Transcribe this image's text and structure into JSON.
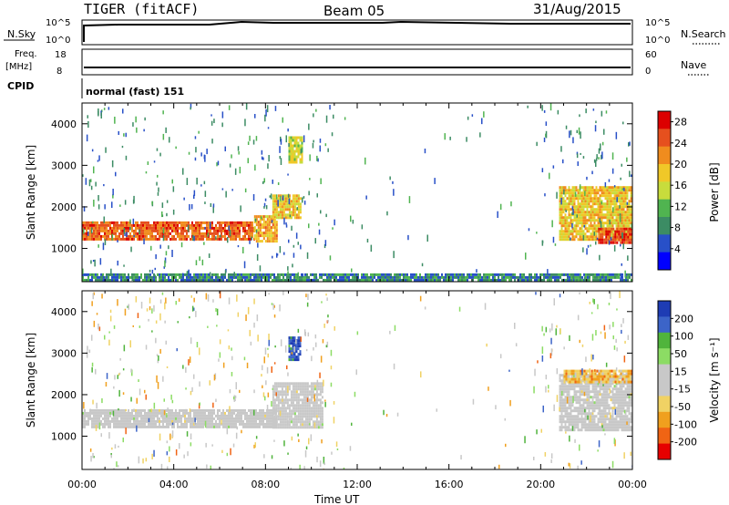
{
  "header": {
    "title": "TIGER (fitACF)",
    "beam": "Beam 05",
    "date": "31/Aug/2015"
  },
  "strips": {
    "nsky": {
      "label": "N.Sky",
      "right_label": "N.Search",
      "left_ticks": [
        "10^5",
        "10^0"
      ],
      "right_ticks": [
        "10^5",
        "10^0"
      ]
    },
    "freq": {
      "label_line1": "Freq.",
      "label_line2": "[MHz]",
      "right_label": "Nave",
      "left_ticks": [
        "18",
        "8"
      ],
      "right_ticks": [
        "60",
        "0"
      ]
    },
    "cpid": {
      "label": "CPID",
      "mode": "normal (fast) 151"
    }
  },
  "colors": {
    "power_scale": [
      "#0000ff",
      "#2850c8",
      "#3c8c64",
      "#50b450",
      "#c8dc3c",
      "#f0c828",
      "#f08c1e",
      "#e6501e",
      "#dc0000"
    ],
    "velocity_scale": [
      "#e60000",
      "#f06414",
      "#f0a01e",
      "#f0d264",
      "#c8c8c8",
      "#c8c8c8",
      "#8cdc64",
      "#50b43c",
      "#3c64c8",
      "#1e3cb4"
    ]
  },
  "chart_data": [
    {
      "type": "heatmap",
      "name": "power",
      "xlabel": "",
      "ylabel": "Slant Range [km]",
      "xlim": [
        "00:00",
        "24:00"
      ],
      "ylim": [
        200,
        4500
      ],
      "yticks": [
        "1000",
        "2000",
        "3000",
        "4000"
      ],
      "colorbar": {
        "label": "Power [dB]",
        "ticks": [
          "4",
          "8",
          "12",
          "16",
          "20",
          "24",
          "28"
        ],
        "range": [
          0,
          30
        ]
      },
      "regions": [
        {
          "t0": 0.0,
          "t1": 7.5,
          "r0": 1250,
          "r1": 1650,
          "level": 24,
          "desc": "main echo band"
        },
        {
          "t0": 7.5,
          "t1": 8.5,
          "r0": 1200,
          "r1": 1800,
          "level": 20
        },
        {
          "t0": 8.3,
          "t1": 9.5,
          "r0": 1750,
          "r1": 2300,
          "level": 18
        },
        {
          "t0": 9.0,
          "t1": 9.6,
          "r0": 3100,
          "r1": 3700,
          "level": 16
        },
        {
          "t0": 20.8,
          "t1": 24.0,
          "r0": 1200,
          "r1": 2500,
          "level": 18
        },
        {
          "t0": 22.5,
          "t1": 24.0,
          "r0": 1150,
          "r1": 1500,
          "level": 26
        },
        {
          "t0": 0.0,
          "t1": 24.0,
          "r0": 200,
          "r1": 400,
          "level": 8,
          "desc": "near-range scatter"
        }
      ]
    },
    {
      "type": "heatmap",
      "name": "velocity",
      "xlabel": "Time UT",
      "ylabel": "Slant Range [km]",
      "xlim": [
        "00:00",
        "24:00"
      ],
      "xticks": [
        "00:00",
        "04:00",
        "08:00",
        "12:00",
        "16:00",
        "20:00",
        "00:00"
      ],
      "ylim": [
        200,
        4500
      ],
      "yticks": [
        "1000",
        "2000",
        "3000",
        "4000"
      ],
      "colorbar": {
        "label": "Velocity [m s⁻¹]",
        "ticks": [
          "200",
          "100",
          "50",
          "15",
          "-15",
          "-50",
          "-100",
          "-200"
        ],
        "range": [
          -250,
          250
        ]
      },
      "regions": [
        {
          "t0": 0.0,
          "t1": 8.5,
          "r0": 1250,
          "r1": 1650,
          "level": 0,
          "desc": "ground scatter"
        },
        {
          "t0": 8.3,
          "t1": 10.5,
          "r0": 1200,
          "r1": 2300,
          "level": 0
        },
        {
          "t0": 9.0,
          "t1": 9.5,
          "r0": 2850,
          "r1": 3400,
          "level": 200
        },
        {
          "t0": 20.8,
          "t1": 24.0,
          "r0": 1150,
          "r1": 2500,
          "level": 0
        },
        {
          "t0": 21.0,
          "t1": 24.0,
          "r0": 2300,
          "r1": 2600,
          "level": -100
        }
      ]
    }
  ]
}
